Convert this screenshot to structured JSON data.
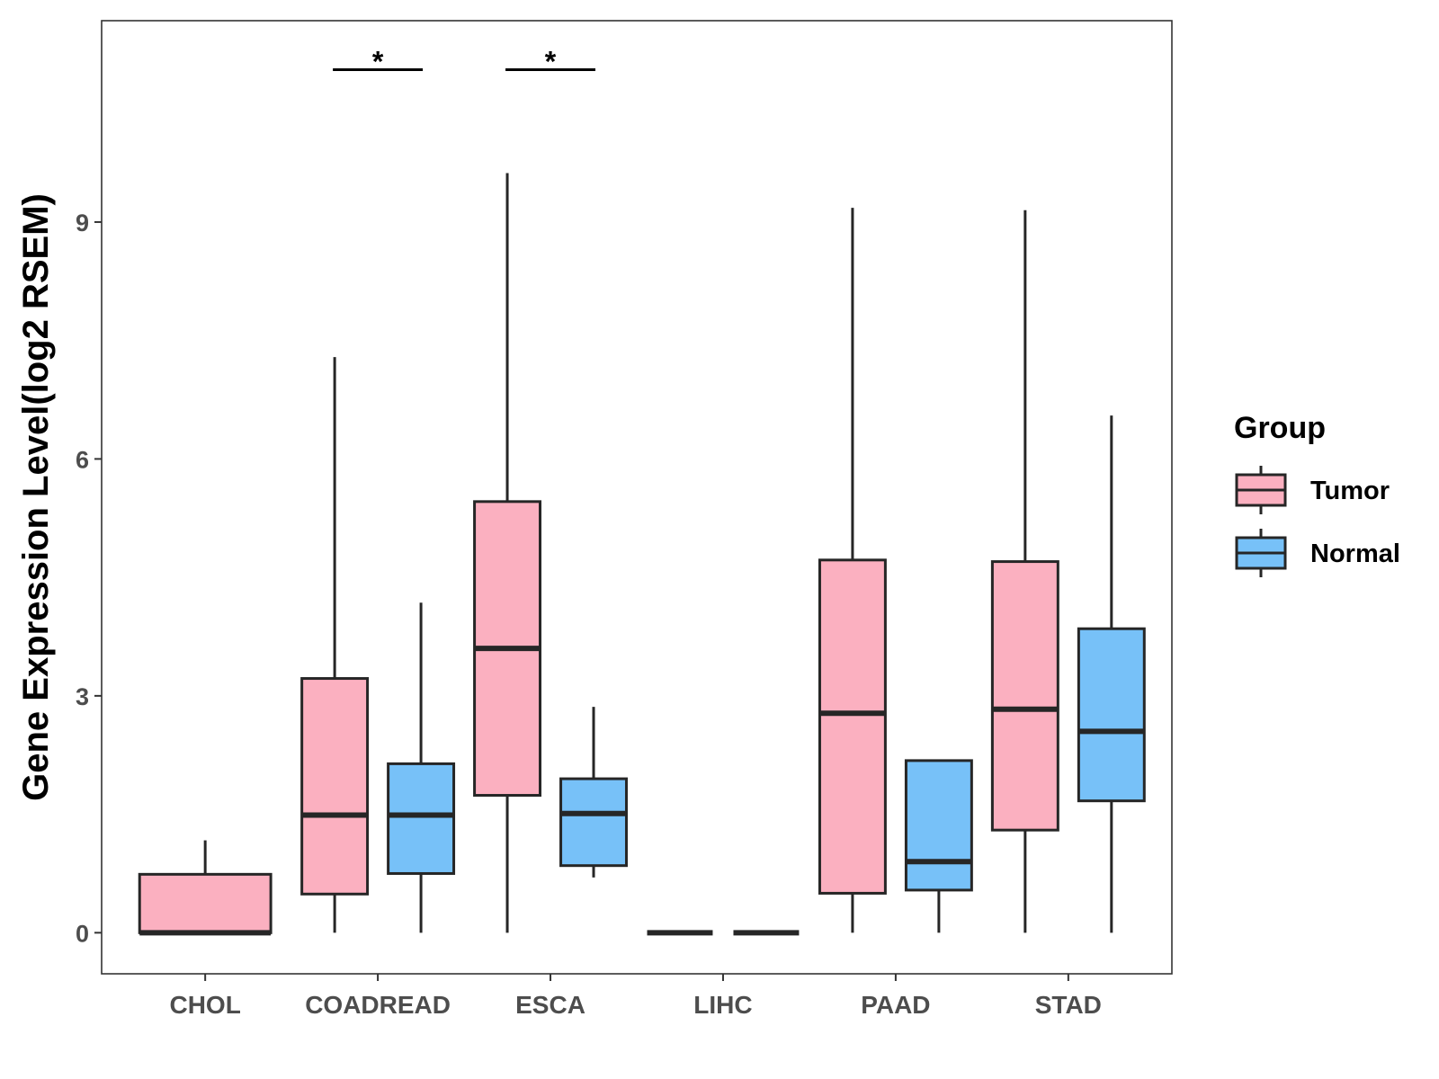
{
  "chart_data": {
    "type": "boxplot",
    "title": "",
    "xlabel": "",
    "ylabel": "Gene Expression Level(log2 RSEM)",
    "ylim": [
      -0.52,
      11.55
    ],
    "yticks": [
      0,
      3,
      6,
      9
    ],
    "grid": false,
    "categories": [
      "CHOL",
      "COADREAD",
      "ESCA",
      "LIHC",
      "PAAD",
      "STAD"
    ],
    "legend": {
      "title": "Group",
      "position": "right",
      "entries": [
        {
          "name": "Tumor",
          "color": "#FBB0C0"
        },
        {
          "name": "Normal",
          "color": "#77C1F8"
        }
      ]
    },
    "series": [
      {
        "name": "Tumor",
        "color": "#FBB0C0",
        "boxes": [
          {
            "category": "CHOL",
            "min": 0,
            "q1": 0,
            "median": 0,
            "q3": 0.74,
            "max": 1.17
          },
          {
            "category": "COADREAD",
            "min": 0,
            "q1": 0.49,
            "median": 1.49,
            "q3": 3.22,
            "max": 7.29
          },
          {
            "category": "ESCA",
            "min": 0,
            "q1": 1.74,
            "median": 3.6,
            "q3": 5.46,
            "max": 9.62
          },
          {
            "category": "LIHC",
            "min": 0,
            "q1": 0,
            "median": 0,
            "q3": 0,
            "max": 0
          },
          {
            "category": "PAAD",
            "min": 0,
            "q1": 0.5,
            "median": 2.78,
            "q3": 4.72,
            "max": 9.18
          },
          {
            "category": "STAD",
            "min": 0,
            "q1": 1.3,
            "median": 2.83,
            "q3": 4.7,
            "max": 9.15
          }
        ]
      },
      {
        "name": "Normal",
        "color": "#77C1F8",
        "boxes": [
          {
            "category": "CHOL",
            "missing": true
          },
          {
            "category": "COADREAD",
            "min": 0,
            "q1": 0.75,
            "median": 1.49,
            "q3": 2.14,
            "max": 4.18
          },
          {
            "category": "ESCA",
            "min": 0.7,
            "q1": 0.85,
            "median": 1.51,
            "q3": 1.95,
            "max": 2.86
          },
          {
            "category": "LIHC",
            "min": 0,
            "q1": 0,
            "median": 0,
            "q3": 0,
            "max": 0
          },
          {
            "category": "PAAD",
            "min": 0,
            "q1": 0.54,
            "median": 0.9,
            "q3": 2.18,
            "max": 2.18
          },
          {
            "category": "STAD",
            "min": 0,
            "q1": 1.67,
            "median": 2.55,
            "q3": 3.85,
            "max": 6.55
          }
        ]
      }
    ],
    "annotations": [
      {
        "category": "COADREAD",
        "label": "*",
        "y": 10.93
      },
      {
        "category": "ESCA",
        "label": "*",
        "y": 10.93
      }
    ]
  }
}
